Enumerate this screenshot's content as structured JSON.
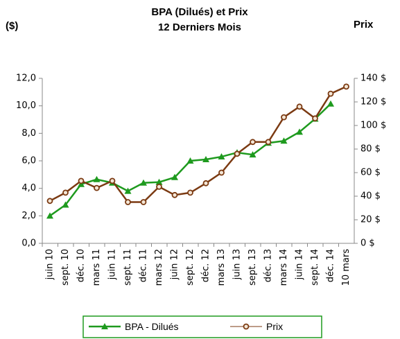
{
  "chart_data": {
    "type": "line",
    "title": "BPA (Dilués) et Prix",
    "subtitle": "12 Derniers Mois",
    "y_label": "($)",
    "y2_label": "Prix",
    "categories": [
      "juin 10",
      "sept. 10",
      "déc. 10",
      "mars 11",
      "juin 11",
      "sept. 11",
      "déc. 11",
      "mars 12",
      "juin 12",
      "sept. 12",
      "déc. 12",
      "mars 13",
      "juin 13",
      "sept. 13",
      "déc. 13",
      "mars 14",
      "juin 14",
      "sept. 14",
      "déc. 14",
      "10 mars"
    ],
    "series": [
      {
        "name": "BPA - Dilués",
        "color": "#1e9a1e",
        "marker": "triangle",
        "values": [
          2.0,
          2.8,
          4.3,
          4.65,
          4.4,
          3.8,
          4.4,
          4.45,
          4.8,
          6.0,
          6.1,
          6.3,
          6.6,
          6.45,
          7.3,
          7.45,
          8.1,
          9.05,
          10.15,
          null
        ]
      },
      {
        "name": "Prix",
        "color": "#7b3a12",
        "marker": "circle",
        "axis": "y2",
        "values": [
          36,
          43,
          53,
          47,
          53,
          35,
          35,
          48,
          41,
          43,
          51,
          60,
          76,
          86,
          86,
          107,
          116,
          106,
          127,
          133
        ]
      }
    ],
    "ylim": [
      0,
      12
    ],
    "yticks": [
      {
        "value": 0,
        "label": "0,0"
      },
      {
        "value": 2,
        "label": "2,0"
      },
      {
        "value": 4,
        "label": "4,0"
      },
      {
        "value": 6,
        "label": "6,0"
      },
      {
        "value": 8,
        "label": "8,0"
      },
      {
        "value": 10,
        "label": "10,0"
      },
      {
        "value": 12,
        "label": "12,0"
      }
    ],
    "y2lim": [
      0,
      140
    ],
    "y2ticks": [
      {
        "value": 0,
        "label": "0 $"
      },
      {
        "value": 20,
        "label": "20 $"
      },
      {
        "value": 40,
        "label": "40 $"
      },
      {
        "value": 60,
        "label": "60 $"
      },
      {
        "value": 80,
        "label": "80 $"
      },
      {
        "value": 100,
        "label": "100 $"
      },
      {
        "value": 120,
        "label": "120 $"
      },
      {
        "value": 140,
        "label": "140 $"
      }
    ]
  }
}
